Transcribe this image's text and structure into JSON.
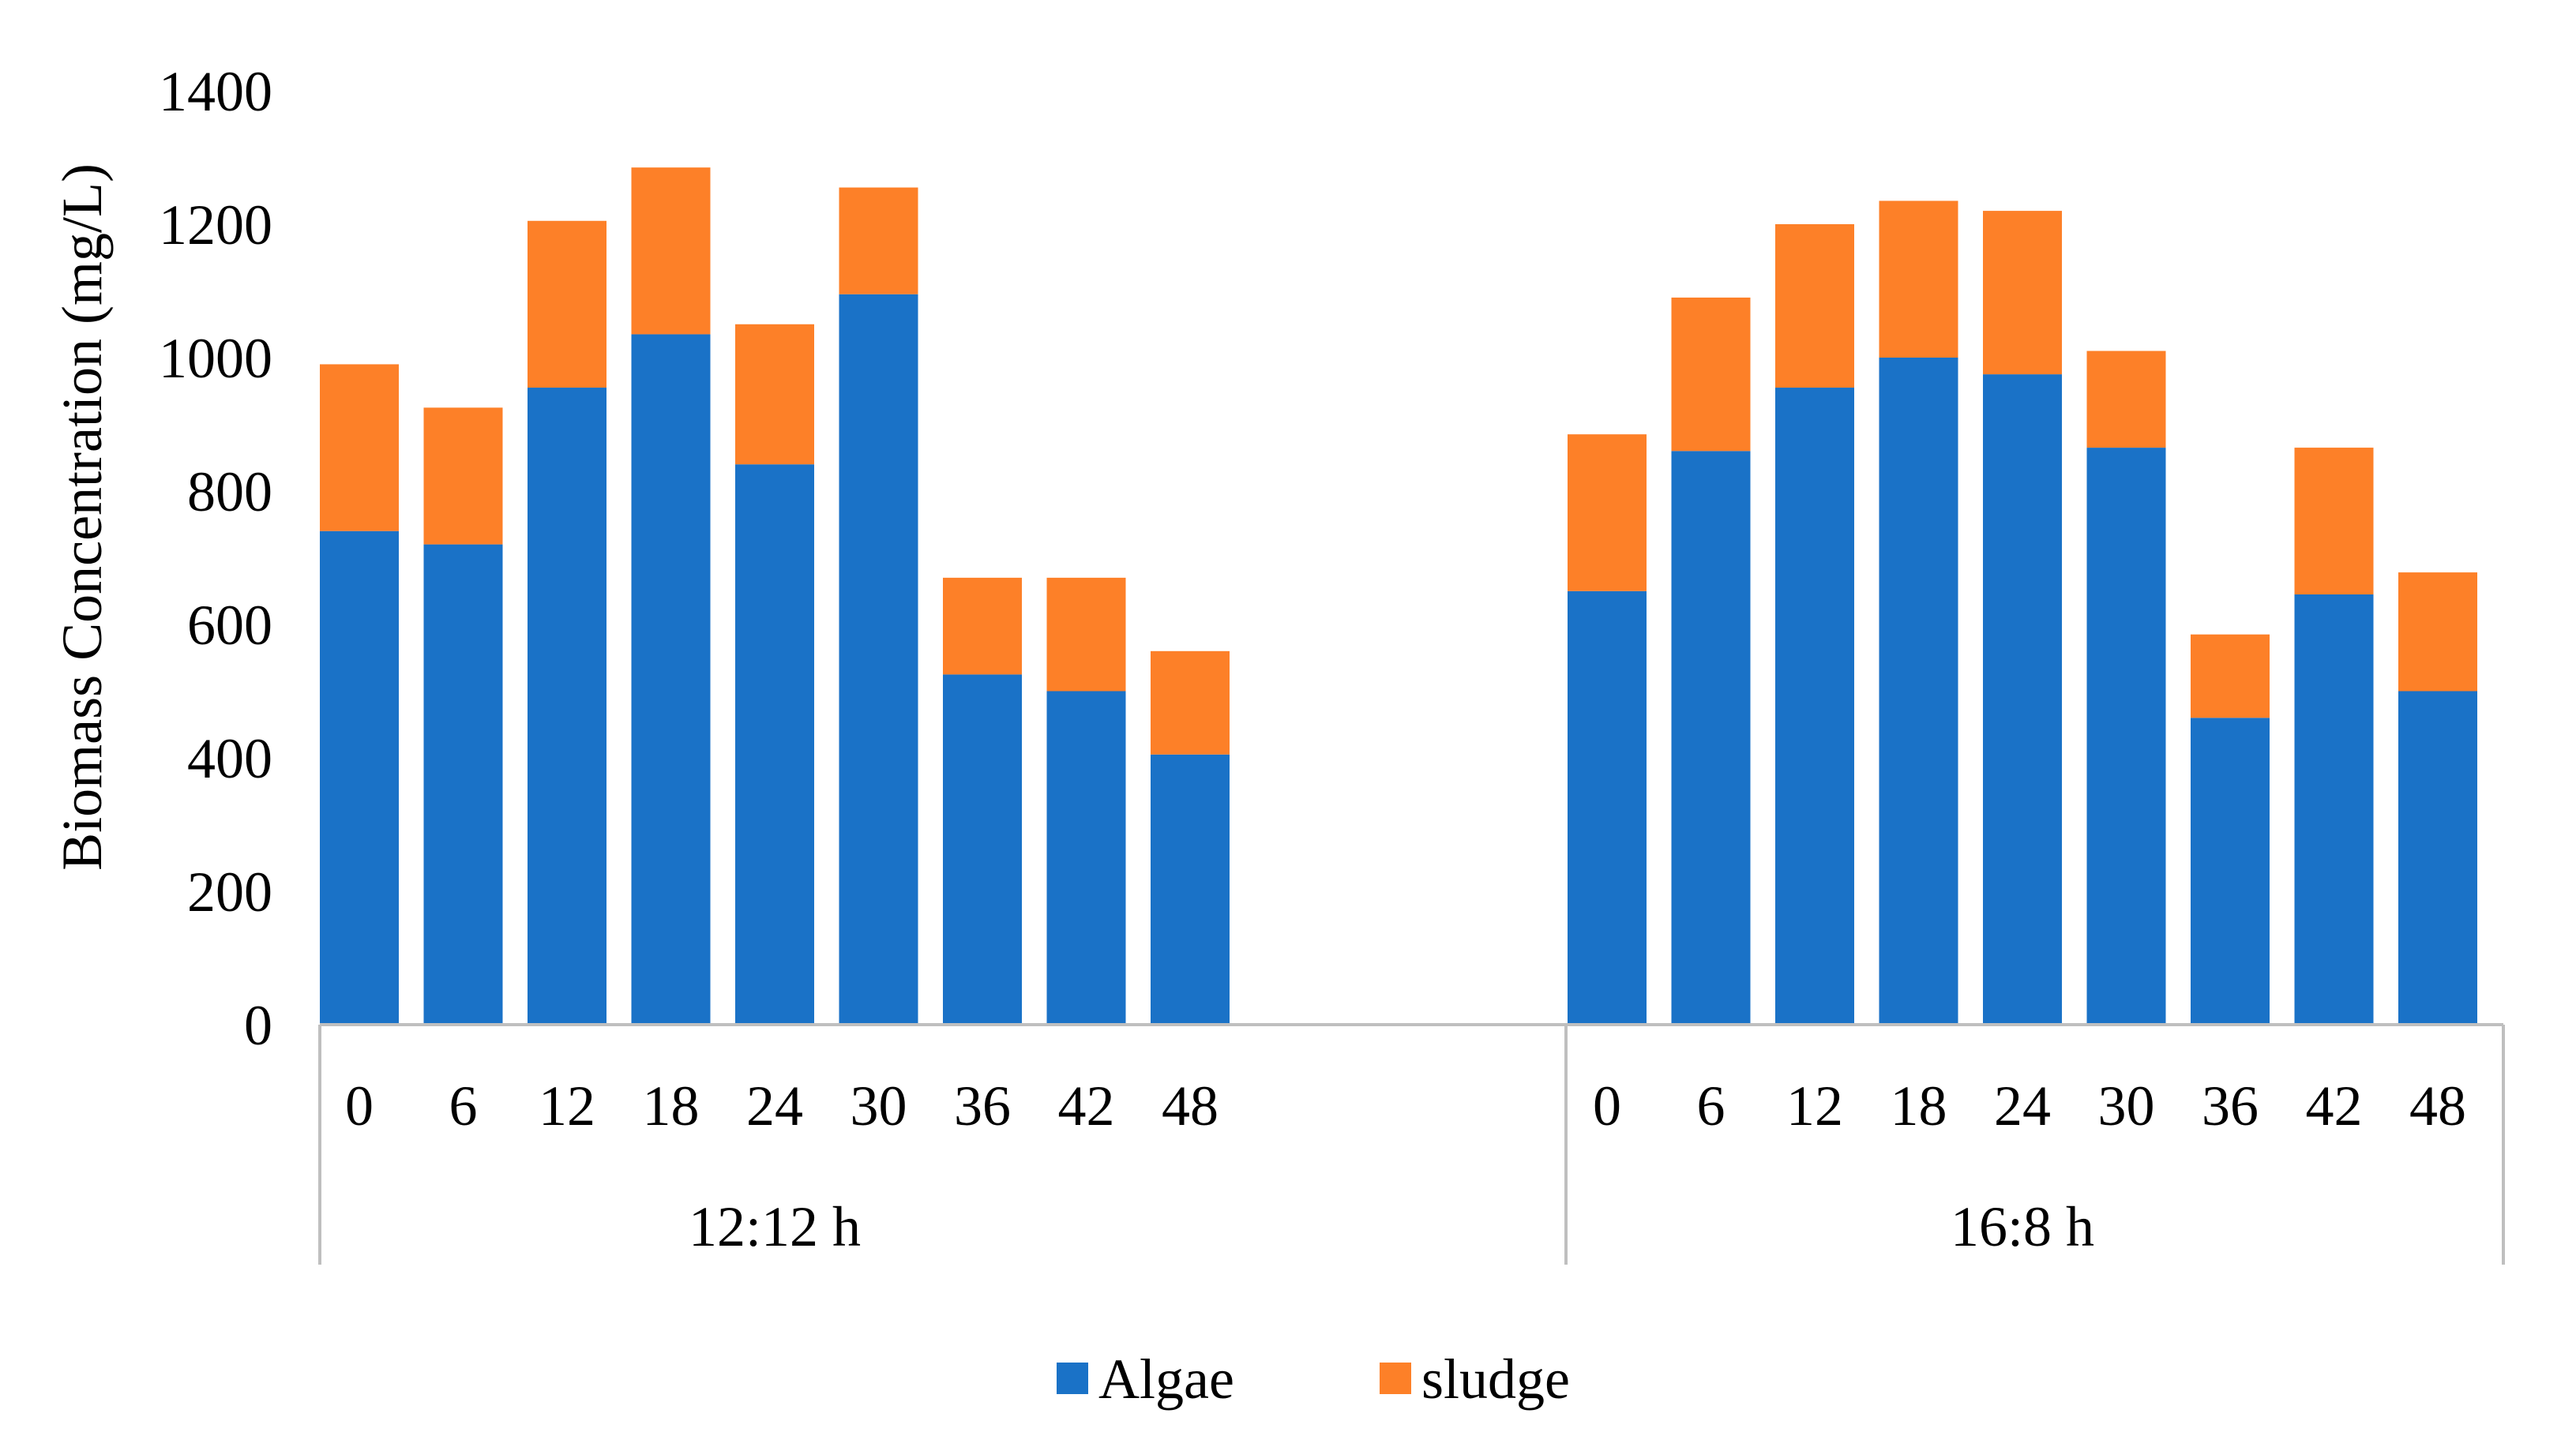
{
  "chart_data": {
    "type": "bar",
    "stacked": true,
    "title": "",
    "xlabel": "",
    "ylabel": "Biomass Concentration (mg/L)",
    "ylim": [
      0,
      1400
    ],
    "yticks": [
      0,
      200,
      400,
      600,
      800,
      1000,
      1200,
      1400
    ],
    "grid": false,
    "legend_position": "bottom",
    "groups": [
      {
        "label": "12:12 h",
        "categories": [
          "0",
          "6",
          "12",
          "18",
          "24",
          "30",
          "36",
          "42",
          "48"
        ]
      },
      {
        "label": "16:8 h",
        "categories": [
          "0",
          "6",
          "12",
          "18",
          "24",
          "30",
          "36",
          "42",
          "48"
        ]
      }
    ],
    "series": [
      {
        "name": "Algae",
        "color": "#1a72c7",
        "values": [
          [
            740,
            720,
            955,
            1035,
            840,
            1095,
            525,
            500,
            405
          ],
          [
            650,
            860,
            955,
            1000,
            975,
            865,
            460,
            645,
            500
          ]
        ]
      },
      {
        "name": "sludge",
        "color": "#fd8028",
        "values": [
          [
            250,
            205,
            250,
            250,
            210,
            160,
            145,
            170,
            155
          ],
          [
            235,
            230,
            245,
            235,
            245,
            145,
            125,
            220,
            178
          ]
        ]
      }
    ]
  }
}
